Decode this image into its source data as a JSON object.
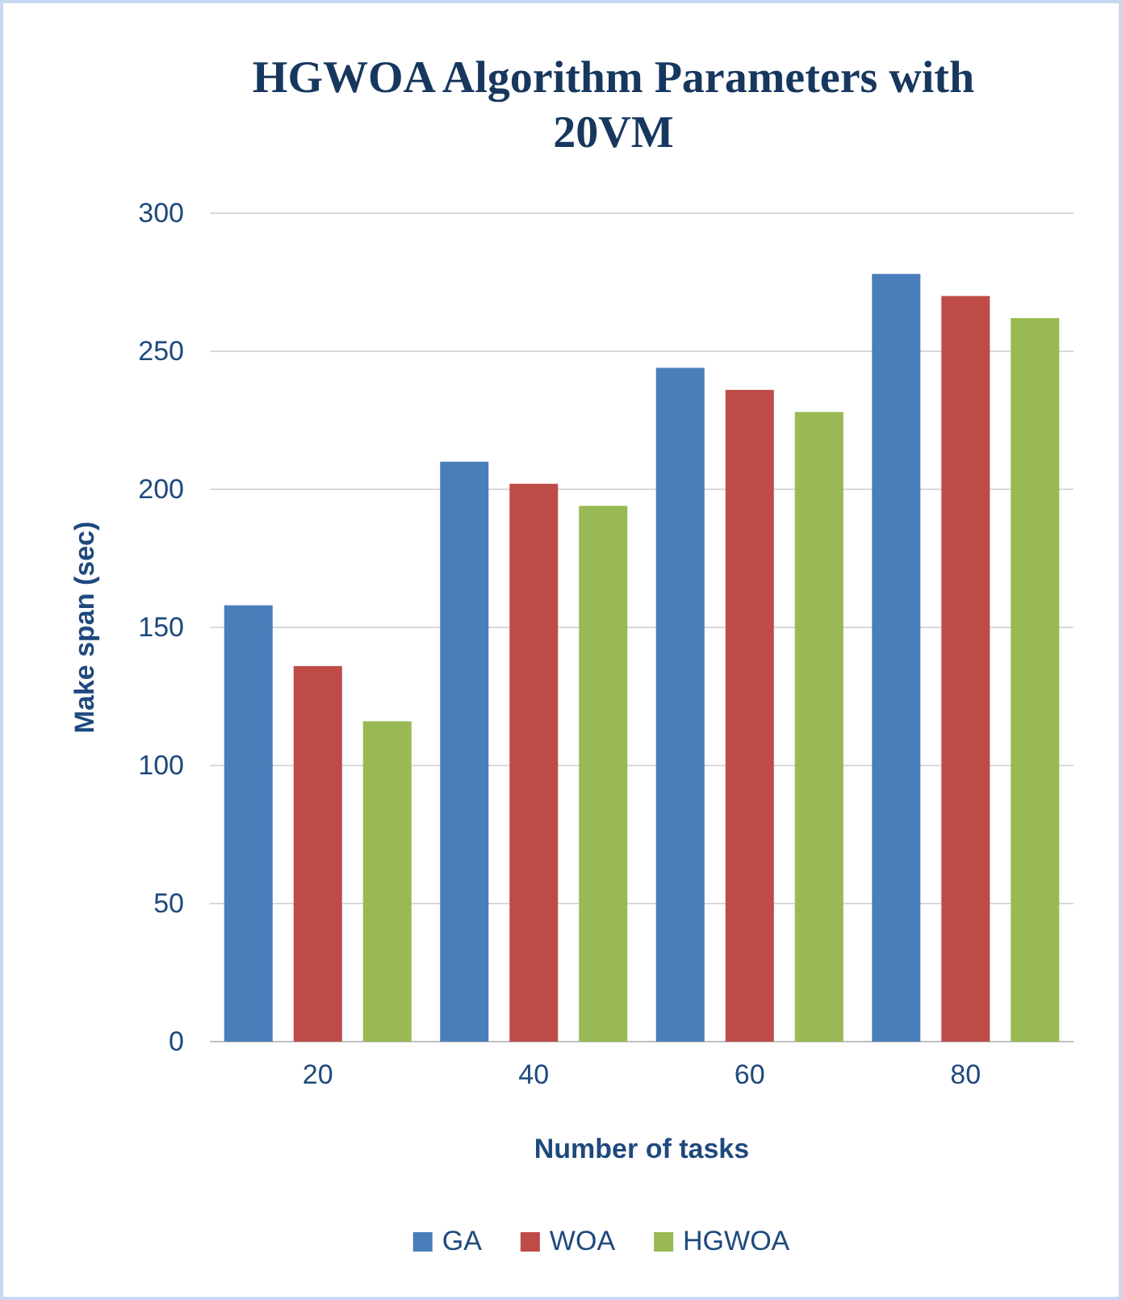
{
  "chart_data": {
    "type": "bar",
    "title": "HGWOA  Algorithm Parameters with 20VM",
    "xlabel": "Number of tasks",
    "ylabel": "Make span (sec)",
    "categories": [
      "20",
      "40",
      "60",
      "80"
    ],
    "series": [
      {
        "name": "GA",
        "color": "#4a7ebb",
        "values": [
          158,
          210,
          244,
          278
        ]
      },
      {
        "name": "WOA",
        "color": "#be4b48",
        "values": [
          136,
          202,
          236,
          270
        ]
      },
      {
        "name": "HGWOA",
        "color": "#98b954",
        "values": [
          116,
          194,
          228,
          262
        ]
      }
    ],
    "ylim": [
      0,
      300
    ],
    "yticks": [
      0,
      50,
      100,
      150,
      200,
      250,
      300
    ],
    "grid": "y",
    "legend": "bottom"
  }
}
